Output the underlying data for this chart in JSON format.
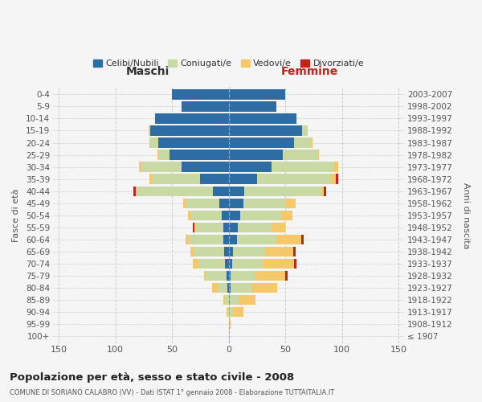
{
  "age_groups": [
    "100+",
    "95-99",
    "90-94",
    "85-89",
    "80-84",
    "75-79",
    "70-74",
    "65-69",
    "60-64",
    "55-59",
    "50-54",
    "45-49",
    "40-44",
    "35-39",
    "30-34",
    "25-29",
    "20-24",
    "15-19",
    "10-14",
    "5-9",
    "0-4"
  ],
  "birth_years": [
    "≤ 1907",
    "1908-1912",
    "1913-1917",
    "1918-1922",
    "1923-1927",
    "1928-1932",
    "1933-1937",
    "1938-1942",
    "1943-1947",
    "1948-1952",
    "1953-1957",
    "1958-1962",
    "1963-1967",
    "1968-1972",
    "1973-1977",
    "1978-1982",
    "1983-1987",
    "1988-1992",
    "1993-1997",
    "1998-2002",
    "2003-2007"
  ],
  "colors": {
    "celibe": "#2E6DA4",
    "coniugato": "#C8D9A4",
    "vedovo": "#F5C96A",
    "divorziato": "#C0251D"
  },
  "maschi": {
    "celibe": [
      0,
      0,
      0,
      0,
      1,
      2,
      3,
      4,
      5,
      5,
      6,
      8,
      14,
      25,
      42,
      52,
      62,
      69,
      65,
      42,
      50
    ],
    "coniugato": [
      0,
      0,
      1,
      3,
      9,
      18,
      24,
      27,
      30,
      24,
      28,
      30,
      68,
      43,
      35,
      10,
      8,
      2,
      0,
      0,
      0
    ],
    "vedovo": [
      0,
      0,
      1,
      2,
      5,
      2,
      5,
      3,
      3,
      1,
      2,
      2,
      0,
      2,
      2,
      1,
      0,
      0,
      0,
      0,
      0
    ],
    "divorziato": [
      0,
      0,
      0,
      0,
      0,
      0,
      0,
      0,
      0,
      2,
      0,
      0,
      2,
      0,
      0,
      0,
      0,
      0,
      0,
      0,
      0
    ]
  },
  "femmine": {
    "nubile": [
      0,
      0,
      0,
      1,
      2,
      2,
      3,
      4,
      7,
      8,
      10,
      13,
      14,
      25,
      38,
      48,
      58,
      65,
      60,
      42,
      50
    ],
    "coniugata": [
      0,
      1,
      4,
      8,
      18,
      22,
      28,
      28,
      35,
      30,
      36,
      38,
      68,
      65,
      55,
      30,
      15,
      5,
      0,
      0,
      0
    ],
    "vedova": [
      1,
      1,
      9,
      15,
      23,
      26,
      27,
      25,
      22,
      12,
      10,
      8,
      2,
      5,
      4,
      2,
      1,
      0,
      0,
      0,
      0
    ],
    "divorziata": [
      0,
      0,
      0,
      0,
      0,
      2,
      2,
      2,
      2,
      0,
      0,
      0,
      2,
      2,
      0,
      0,
      0,
      0,
      0,
      0,
      0
    ]
  },
  "xlim": 155,
  "title": "Popolazione per età, sesso e stato civile - 2008",
  "subtitle": "COMUNE DI SORIANO CALABRO (VV) - Dati ISTAT 1° gennaio 2008 - Elaborazione TUTTAITALIA.IT",
  "ylabel_left": "Fasce di età",
  "ylabel_right": "Anni di nascita",
  "xlabel_left": "Maschi",
  "xlabel_right": "Femmine",
  "bg_color": "#f5f5f5",
  "grid_color": "#cccccc"
}
